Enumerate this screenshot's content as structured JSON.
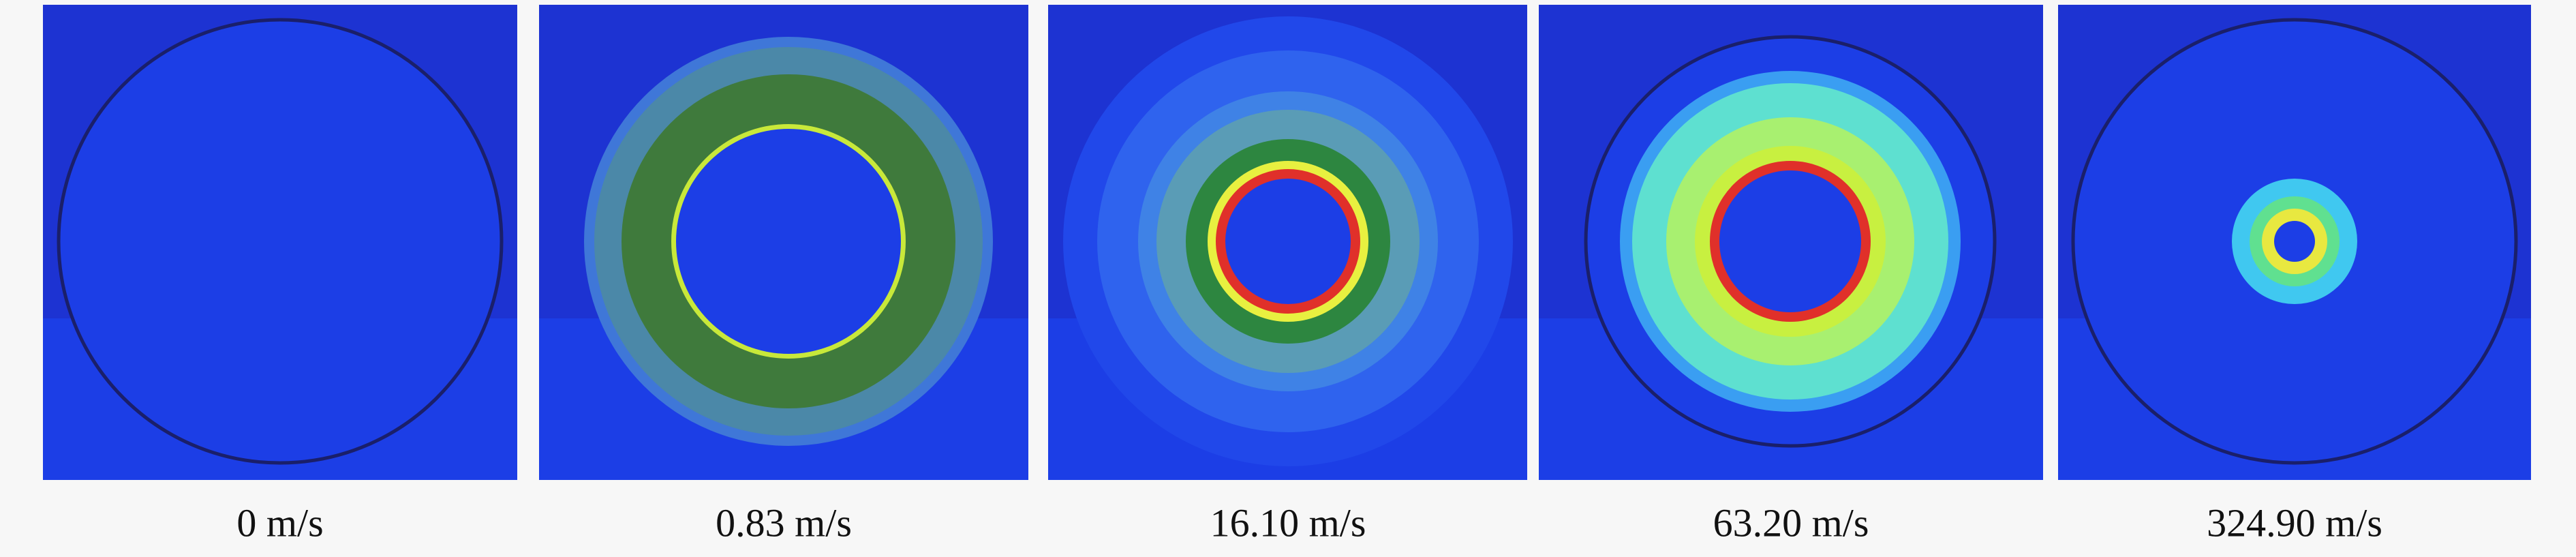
{
  "panels": [
    {
      "caption": "0 m/s"
    },
    {
      "caption": "0.83 m/s"
    },
    {
      "caption": "16.10 m/s"
    },
    {
      "caption": "63.20 m/s"
    },
    {
      "caption": "324.90 m/s"
    }
  ]
}
